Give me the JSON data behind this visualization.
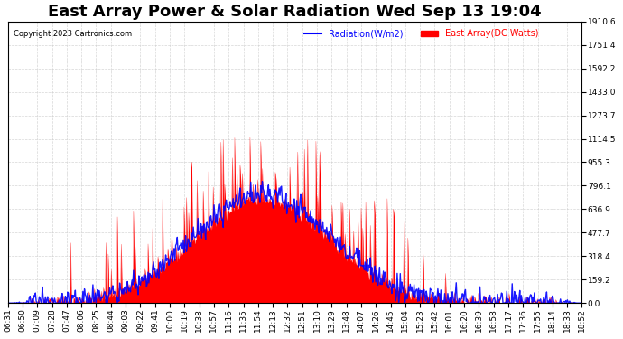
{
  "title": "East Array Power & Solar Radiation Wed Sep 13 19:04",
  "copyright": "Copyright 2023 Cartronics.com",
  "legend_radiation": "Radiation(W/m2)",
  "legend_east": "East Array(DC Watts)",
  "radiation_color": "blue",
  "east_color": "red",
  "ymin": 0.0,
  "ymax": 1910.6,
  "yticks": [
    0.0,
    159.2,
    318.4,
    477.7,
    636.9,
    796.1,
    955.3,
    1114.5,
    1273.7,
    1433.0,
    1592.2,
    1751.4,
    1910.6
  ],
  "background_color": "#ffffff",
  "grid_color": "#cccccc",
  "title_fontsize": 13,
  "tick_fontsize": 6.5,
  "x_tick_labels": [
    "06:31",
    "06:50",
    "07:09",
    "07:28",
    "07:47",
    "08:06",
    "08:25",
    "08:44",
    "09:03",
    "09:22",
    "09:41",
    "10:00",
    "10:19",
    "10:38",
    "10:57",
    "11:16",
    "11:35",
    "11:54",
    "12:13",
    "12:32",
    "12:51",
    "13:10",
    "13:29",
    "13:48",
    "14:07",
    "14:26",
    "14:45",
    "15:04",
    "15:23",
    "15:42",
    "16:01",
    "16:20",
    "16:39",
    "16:58",
    "17:17",
    "17:36",
    "17:55",
    "18:14",
    "18:33",
    "18:52"
  ]
}
